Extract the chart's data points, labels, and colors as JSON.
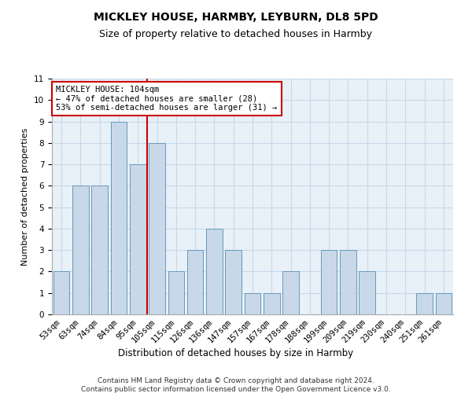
{
  "title": "MICKLEY HOUSE, HARMBY, LEYBURN, DL8 5PD",
  "subtitle": "Size of property relative to detached houses in Harmby",
  "xlabel": "Distribution of detached houses by size in Harmby",
  "ylabel": "Number of detached properties",
  "categories": [
    "53sqm",
    "63sqm",
    "74sqm",
    "84sqm",
    "95sqm",
    "105sqm",
    "115sqm",
    "126sqm",
    "136sqm",
    "147sqm",
    "157sqm",
    "167sqm",
    "178sqm",
    "188sqm",
    "199sqm",
    "209sqm",
    "219sqm",
    "230sqm",
    "240sqm",
    "251sqm",
    "261sqm"
  ],
  "values": [
    2,
    6,
    6,
    9,
    7,
    8,
    2,
    3,
    4,
    3,
    1,
    1,
    2,
    0,
    3,
    3,
    2,
    0,
    0,
    1,
    1
  ],
  "bar_color": "#c8d8e8",
  "bar_edge_color": "#6699bb",
  "highlight_index": 5,
  "highlight_line_color": "#cc0000",
  "annotation_text": "MICKLEY HOUSE: 104sqm\n← 47% of detached houses are smaller (28)\n53% of semi-detached houses are larger (31) →",
  "annotation_box_color": "#ffffff",
  "annotation_box_edge_color": "#cc0000",
  "ylim": [
    0,
    11
  ],
  "yticks": [
    0,
    1,
    2,
    3,
    4,
    5,
    6,
    7,
    8,
    9,
    10,
    11
  ],
  "grid_color": "#c8d8e8",
  "background_color": "#e8f0f8",
  "footer_line1": "Contains HM Land Registry data © Crown copyright and database right 2024.",
  "footer_line2": "Contains public sector information licensed under the Open Government Licence v3.0.",
  "title_fontsize": 10,
  "subtitle_fontsize": 9,
  "xlabel_fontsize": 8.5,
  "ylabel_fontsize": 8,
  "tick_fontsize": 7.5,
  "annotation_fontsize": 7.5,
  "footer_fontsize": 6.5
}
